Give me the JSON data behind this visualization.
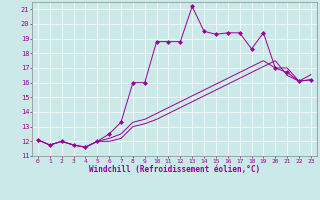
{
  "xlabel": "Windchill (Refroidissement éolien,°C)",
  "ylabel": "",
  "xlim": [
    -0.5,
    23.5
  ],
  "ylim": [
    11,
    21.5
  ],
  "xticks": [
    0,
    1,
    2,
    3,
    4,
    5,
    6,
    7,
    8,
    9,
    10,
    11,
    12,
    13,
    14,
    15,
    16,
    17,
    18,
    19,
    20,
    21,
    22,
    23
  ],
  "yticks": [
    11,
    12,
    13,
    14,
    15,
    16,
    17,
    18,
    19,
    20,
    21
  ],
  "bg_color": "#cbe9e9",
  "line_color": "#990099",
  "markersize": 2.5,
  "line1_x": [
    0,
    1,
    2,
    3,
    4,
    5,
    6,
    7,
    8,
    9,
    10,
    11,
    12,
    13,
    14,
    15,
    16,
    17,
    18,
    19,
    20,
    21,
    22,
    23
  ],
  "line1_y": [
    12.1,
    11.75,
    12.0,
    11.75,
    11.6,
    12.0,
    12.5,
    13.3,
    16.0,
    16.0,
    18.8,
    18.8,
    18.8,
    21.2,
    19.5,
    19.3,
    19.4,
    19.4,
    18.3,
    19.4,
    17.0,
    16.7,
    16.1,
    16.2
  ],
  "line2_x": [
    0,
    1,
    2,
    3,
    4,
    5,
    6,
    7,
    8,
    9,
    10,
    11,
    12,
    13,
    14,
    15,
    16,
    17,
    18,
    19,
    20,
    21,
    22,
    23
  ],
  "line2_y": [
    12.1,
    11.75,
    12.0,
    11.75,
    11.6,
    12.0,
    12.2,
    12.5,
    13.3,
    13.5,
    13.9,
    14.3,
    14.7,
    15.1,
    15.5,
    15.9,
    16.3,
    16.7,
    17.1,
    17.5,
    17.0,
    17.0,
    16.1,
    16.55
  ],
  "line3_x": [
    0,
    1,
    2,
    3,
    4,
    5,
    6,
    7,
    8,
    9,
    10,
    11,
    12,
    13,
    14,
    15,
    16,
    17,
    18,
    19,
    20,
    21,
    22,
    23
  ],
  "line3_y": [
    12.1,
    11.75,
    12.0,
    11.75,
    11.6,
    12.0,
    12.0,
    12.2,
    13.0,
    13.2,
    13.5,
    13.9,
    14.3,
    14.7,
    15.1,
    15.5,
    15.9,
    16.3,
    16.7,
    17.1,
    17.5,
    16.5,
    16.1,
    16.2
  ]
}
